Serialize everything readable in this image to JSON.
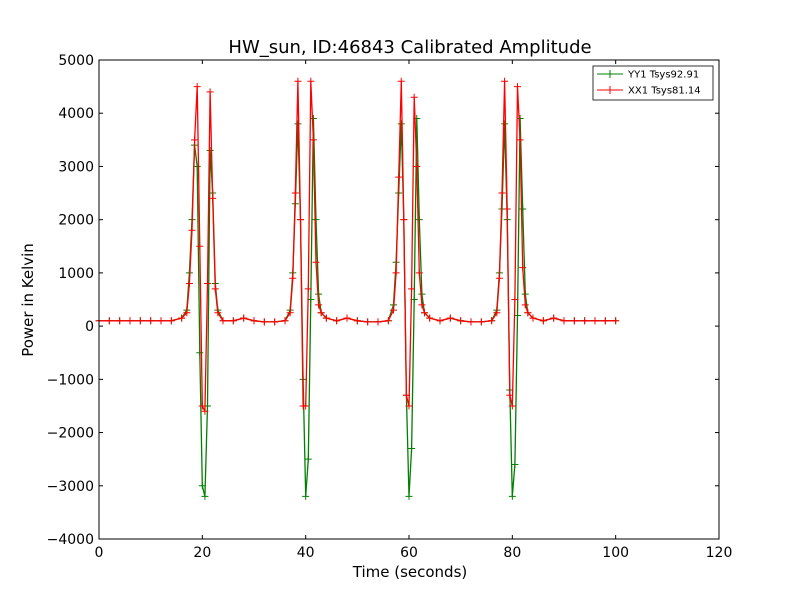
{
  "chart_data": {
    "type": "line",
    "title": "HW_sun, ID:46843 Calibrated Amplitude",
    "xlabel": "Time (seconds)",
    "ylabel": "Power in Kelvin",
    "xlim": [
      0,
      120
    ],
    "ylim": [
      -4000,
      5000
    ],
    "xticks": [
      0,
      20,
      40,
      60,
      80,
      100,
      120
    ],
    "yticks": [
      -4000,
      -3000,
      -2000,
      -1000,
      0,
      1000,
      2000,
      3000,
      4000,
      5000
    ],
    "xtick_labels": [
      "0",
      "20",
      "40",
      "60",
      "80",
      "100",
      "120"
    ],
    "ytick_labels": [
      "−4000",
      "−3000",
      "−2000",
      "−1000",
      "0",
      "1000",
      "2000",
      "3000",
      "4000",
      "5000"
    ],
    "legend_position": "top-right",
    "grid": false,
    "marker": "+",
    "series": [
      {
        "name": "YY1 Tsys92.91",
        "color": "#008000",
        "x": [
          0,
          2,
          4,
          6,
          8,
          10,
          12,
          14,
          16,
          17,
          17.5,
          18,
          18.5,
          19,
          19.5,
          20,
          20.5,
          21,
          21.5,
          22,
          22.5,
          23,
          24,
          26,
          28,
          30,
          32,
          34,
          36,
          37,
          37.5,
          38,
          38.5,
          39,
          39.5,
          40,
          40.5,
          41,
          41.5,
          42,
          42.5,
          43,
          44,
          46,
          48,
          50,
          52,
          54,
          56,
          57,
          57.5,
          58,
          58.5,
          59,
          59.5,
          60,
          60.5,
          61,
          61.5,
          62,
          62.5,
          63,
          64,
          66,
          68,
          70,
          72,
          74,
          76,
          77,
          77.5,
          78,
          78.5,
          79,
          79.5,
          80,
          80.5,
          81,
          81.5,
          82,
          82.5,
          83,
          84,
          86,
          88,
          90,
          92,
          94,
          96,
          98,
          100
        ],
        "y": [
          100,
          100,
          100,
          100,
          100,
          100,
          100,
          100,
          150,
          300,
          1000,
          2000,
          3400,
          3000,
          -500,
          -3000,
          -3200,
          -1500,
          3300,
          2500,
          800,
          300,
          100,
          100,
          150,
          100,
          80,
          80,
          100,
          300,
          1000,
          2300,
          3800,
          2000,
          -1000,
          -3200,
          -2500,
          500,
          3900,
          2000,
          600,
          250,
          150,
          100,
          150,
          100,
          80,
          80,
          100,
          400,
          1200,
          2500,
          3800,
          2000,
          -1300,
          -3200,
          -2300,
          500,
          3900,
          2000,
          600,
          250,
          150,
          100,
          150,
          100,
          80,
          80,
          100,
          300,
          1000,
          2200,
          3800,
          2000,
          -1200,
          -3200,
          -2600,
          200,
          3900,
          2200,
          600,
          250,
          150,
          100,
          150,
          100,
          100,
          100,
          100,
          100,
          100
        ]
      },
      {
        "name": "XX1 Tsys81.14",
        "color": "#ff0000",
        "x": [
          0,
          2,
          4,
          6,
          8,
          10,
          12,
          14,
          16,
          17,
          17.5,
          18,
          18.5,
          19,
          19.5,
          20,
          20.5,
          21,
          21.5,
          22,
          22.5,
          23,
          24,
          26,
          28,
          30,
          32,
          34,
          36,
          37,
          37.5,
          38,
          38.5,
          39,
          39.5,
          40,
          40.5,
          41,
          41.5,
          42,
          42.5,
          43,
          44,
          46,
          48,
          50,
          52,
          54,
          56,
          57,
          57.5,
          58,
          58.5,
          59,
          59.5,
          60,
          60.5,
          61,
          61.5,
          62,
          62.5,
          63,
          64,
          66,
          68,
          70,
          72,
          74,
          76,
          77,
          77.5,
          78,
          78.5,
          79,
          79.5,
          80,
          80.5,
          81,
          81.5,
          82,
          82.5,
          83,
          84,
          86,
          88,
          90,
          92,
          94,
          96,
          98,
          100
        ],
        "y": [
          100,
          100,
          100,
          100,
          100,
          100,
          100,
          100,
          150,
          250,
          800,
          1800,
          3500,
          4500,
          1500,
          -1500,
          -1600,
          800,
          4400,
          2400,
          700,
          250,
          100,
          100,
          150,
          100,
          80,
          80,
          100,
          250,
          900,
          2500,
          4600,
          2000,
          -1500,
          -1500,
          700,
          4600,
          3500,
          1200,
          400,
          250,
          150,
          100,
          150,
          100,
          80,
          80,
          100,
          300,
          1000,
          2800,
          4600,
          2000,
          -1300,
          -1500,
          700,
          4300,
          3000,
          1000,
          400,
          250,
          150,
          100,
          150,
          100,
          80,
          80,
          100,
          250,
          900,
          2500,
          4600,
          2200,
          -1300,
          -1500,
          500,
          4500,
          3500,
          1100,
          400,
          250,
          150,
          100,
          150,
          100,
          100,
          100,
          100,
          100,
          100
        ]
      }
    ]
  }
}
